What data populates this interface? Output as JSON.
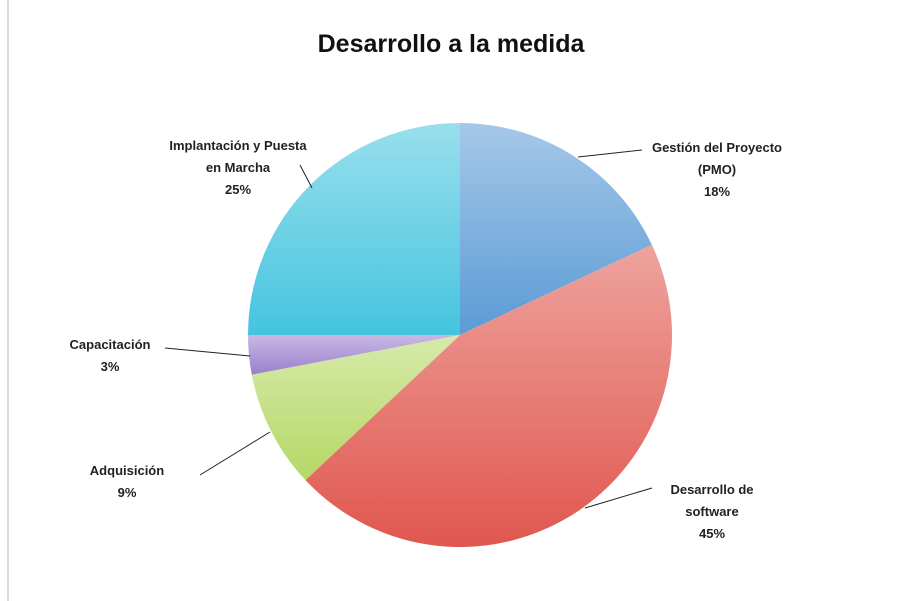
{
  "chart_data": {
    "type": "pie",
    "title": "Desarrollo a la medida",
    "categories": [
      "Gestión del Proyecto (PMO)",
      "Desarrollo de software",
      "Adquisición",
      "Capacitación",
      "Implantación y Puesta en Marcha"
    ],
    "values": [
      18,
      45,
      9,
      3,
      25
    ],
    "value_labels": [
      "18%",
      "45%",
      "9%",
      "3%",
      "25%"
    ],
    "colors": [
      "#5b9bd5",
      "#e0574f",
      "#b5d865",
      "#9b7fcc",
      "#45c4df"
    ]
  }
}
